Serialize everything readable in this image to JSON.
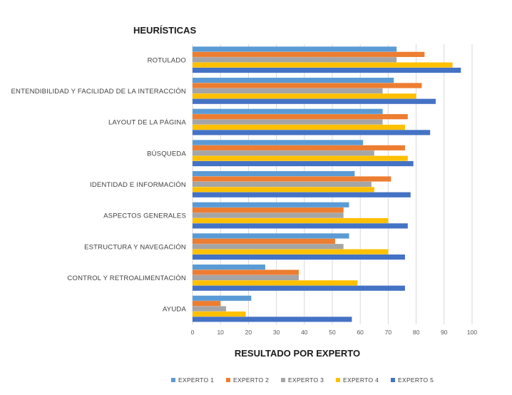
{
  "chart_data": {
    "type": "bar",
    "orientation": "horizontal",
    "title": "HEURÍSTICAS",
    "xlabel": "RESULTADO POR EXPERTO",
    "ylabel": "",
    "xlim": [
      0,
      100
    ],
    "xticks": [
      "0",
      "10",
      "20",
      "30",
      "40",
      "50",
      "60",
      "70",
      "80",
      "90",
      "100"
    ],
    "grid": "vertical",
    "legend_position": "bottom",
    "categories": [
      "ROTULADO",
      "ENTENDIBILIDAD Y FACILIDAD DE LA INTERACCIÓN",
      "LAYOUT DE LA PÁGINA",
      "BÚSQUEDA",
      "IDENTIDAD E INFORMACIÓN",
      "ASPECTOS GENERALES",
      "ESTRUCTURA Y NAVEGACIÓN",
      "CONTROL Y RETROALIMENTACIÓN",
      "AYUDA"
    ],
    "series": [
      {
        "name": "EXPERTO 1",
        "color": "#5B9BD5",
        "values": [
          73,
          72,
          68,
          61,
          58,
          56,
          56,
          26,
          21
        ]
      },
      {
        "name": "EXPERTO 2",
        "color": "#ED7D31",
        "values": [
          83,
          82,
          77,
          76,
          71,
          54,
          51,
          38,
          10
        ]
      },
      {
        "name": "EXPERTO 3",
        "color": "#A5A5A5",
        "values": [
          73,
          68,
          68,
          65,
          64,
          54,
          54,
          38,
          12
        ]
      },
      {
        "name": "EXPERTO 4",
        "color": "#FFC000",
        "values": [
          93,
          80,
          76,
          77,
          65,
          70,
          70,
          59,
          19
        ]
      },
      {
        "name": "EXPERTO 5",
        "color": "#4472C4",
        "values": [
          96,
          87,
          85,
          79,
          78,
          77,
          76,
          76,
          57
        ]
      }
    ]
  }
}
